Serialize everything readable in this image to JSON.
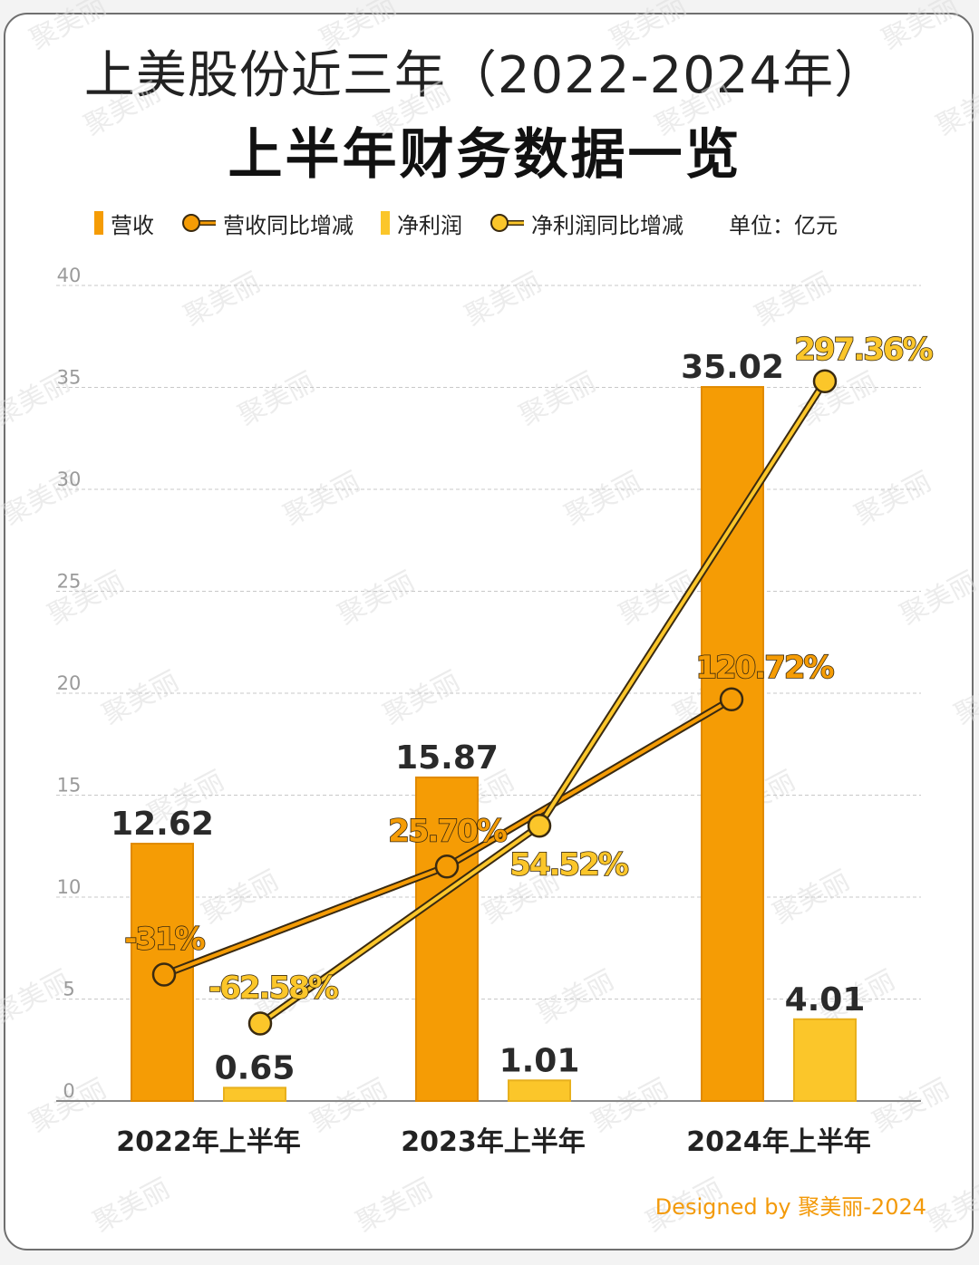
{
  "title_line1": "上美股份近三年（2022-2024年）",
  "title_line2": "上半年财务数据一览",
  "legend": {
    "revenue": "营收",
    "revenue_yoy": "营收同比增减",
    "net_profit": "净利润",
    "net_profit_yoy": "净利润同比增减",
    "unit": "单位：亿元"
  },
  "footer": "Designed by 聚美丽-2024",
  "watermark": "聚美丽",
  "colors": {
    "revenue": "#f59c05",
    "revenue_stroke": "#e08a00",
    "net_profit": "#fbc62a",
    "net_profit_stroke": "#e8b01c",
    "grid": "#c8c8c8",
    "axis_text": "#9a9a9a",
    "line_outline": "#3a2a10"
  },
  "chart_data": {
    "type": "bar",
    "categories": [
      "2022年上半年",
      "2023年上半年",
      "2024年上半年"
    ],
    "ylim": [
      0,
      40
    ],
    "yticks": [
      0,
      5,
      10,
      15,
      20,
      25,
      30,
      35,
      40
    ],
    "grid": true,
    "legend_position": "top",
    "series": [
      {
        "name": "营收",
        "kind": "bar",
        "values": [
          12.62,
          15.87,
          35.02
        ],
        "labels": [
          "12.62",
          "15.87",
          "35.02"
        ]
      },
      {
        "name": "净利润",
        "kind": "bar",
        "values": [
          0.65,
          1.01,
          4.01
        ],
        "labels": [
          "0.65",
          "1.01",
          "4.01"
        ]
      }
    ],
    "lines": [
      {
        "name": "营收同比增减",
        "labels": [
          "-31%",
          "25.70%",
          "120.72%"
        ],
        "values_percent": [
          -31,
          25.7,
          120.72
        ],
        "plot_y": [
          6.2,
          11.5,
          19.7
        ]
      },
      {
        "name": "净利润同比增减",
        "labels": [
          "-62.58%",
          "54.52%",
          "297.36%"
        ],
        "values_percent": [
          -62.58,
          54.52,
          297.36
        ],
        "plot_y": [
          3.8,
          13.5,
          35.3
        ]
      }
    ]
  }
}
